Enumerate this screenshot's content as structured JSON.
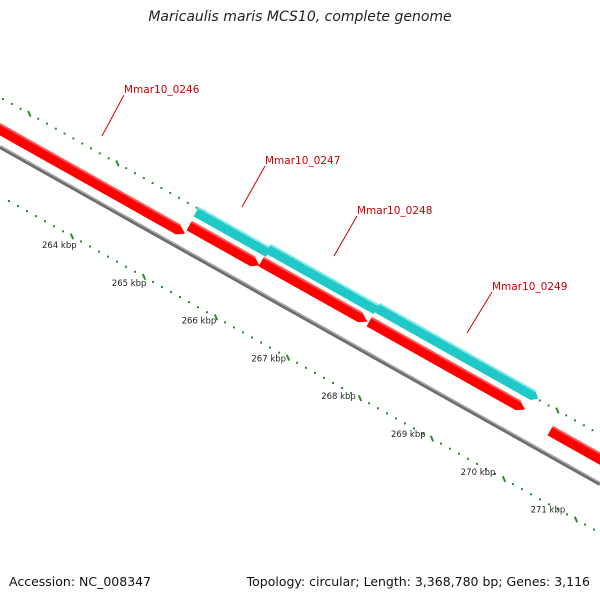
{
  "title": "Maricaulis maris MCS10, complete genome",
  "footer": {
    "accession": "Accession: NC_008347",
    "summary": "Topology: circular; Length: 3,368,780 bp; Genes: 3,116"
  },
  "colors": {
    "forward_gene": "#ff0000",
    "forward_gene_highlight": "#ff5555",
    "reverse_gene": "#20c8c8",
    "reverse_gene_highlight": "#80e8e8",
    "backbone": "#808080",
    "tick": "#2e8b2e",
    "label": "#cc0000"
  },
  "gene_labels": [
    "Mmar10_0246",
    "Mmar10_0247",
    "Mmar10_0248",
    "Mmar10_0249"
  ],
  "scale_labels": [
    "264 kbp",
    "265 kbp",
    "266 kbp",
    "267 kbp",
    "268 kbp",
    "269 kbp",
    "270 kbp",
    "271 kbp"
  ]
}
